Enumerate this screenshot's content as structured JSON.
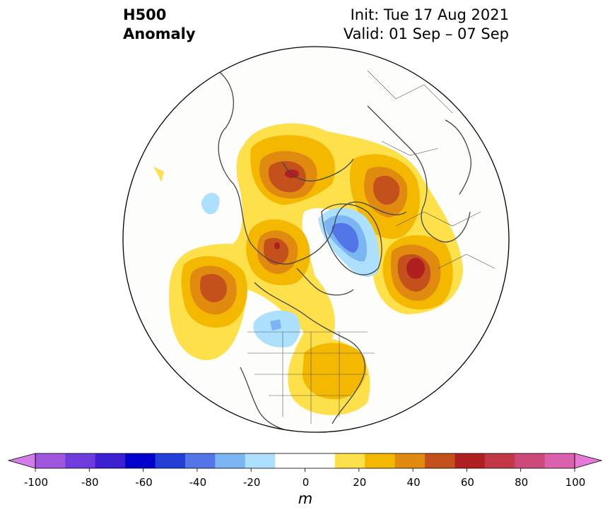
{
  "header": {
    "variable_line1": "H500",
    "variable_line2": "Anomaly",
    "init": "Init: Tue 17 Aug 2021",
    "valid": "Valid: 01 Sep – 07 Sep"
  },
  "colorbar": {
    "unit": "m",
    "ticks": [
      "-100",
      "-80",
      "-60",
      "-40",
      "-20",
      "0",
      "20",
      "40",
      "60",
      "80",
      "100"
    ],
    "colors": [
      "#d17ce8",
      "#a057de",
      "#6f3bdc",
      "#3b1fd1",
      "#0000cc",
      "#2240d8",
      "#5276e8",
      "#7bb5f4",
      "#ade0fc",
      "#ffffff",
      "#ffffff",
      "#fde04a",
      "#f4b800",
      "#e18a10",
      "#c4501c",
      "#b02020",
      "#c23848",
      "#cc4a7a",
      "#db60ad",
      "#e678d8"
    ]
  },
  "anomaly_features": [
    {
      "name": "ridge-siberia",
      "sign": "positive",
      "peak": "50-60"
    },
    {
      "name": "ridge-east-siberia",
      "sign": "positive",
      "peak": "50-60"
    },
    {
      "name": "ridge-bering",
      "sign": "positive",
      "peak": "40-50"
    },
    {
      "name": "ridge-europe",
      "sign": "positive",
      "peak": "50-60"
    },
    {
      "name": "ridge-scandinavia",
      "sign": "positive",
      "peak": "40-50"
    },
    {
      "name": "ridge-north-america-east",
      "sign": "positive",
      "peak": "20-30"
    },
    {
      "name": "trough-greenland",
      "sign": "negative",
      "peak": "-40--30"
    },
    {
      "name": "trough-canada",
      "sign": "negative",
      "peak": "-20--10"
    },
    {
      "name": "trough-pacific-small",
      "sign": "negative",
      "peak": "-20--10"
    }
  ]
}
